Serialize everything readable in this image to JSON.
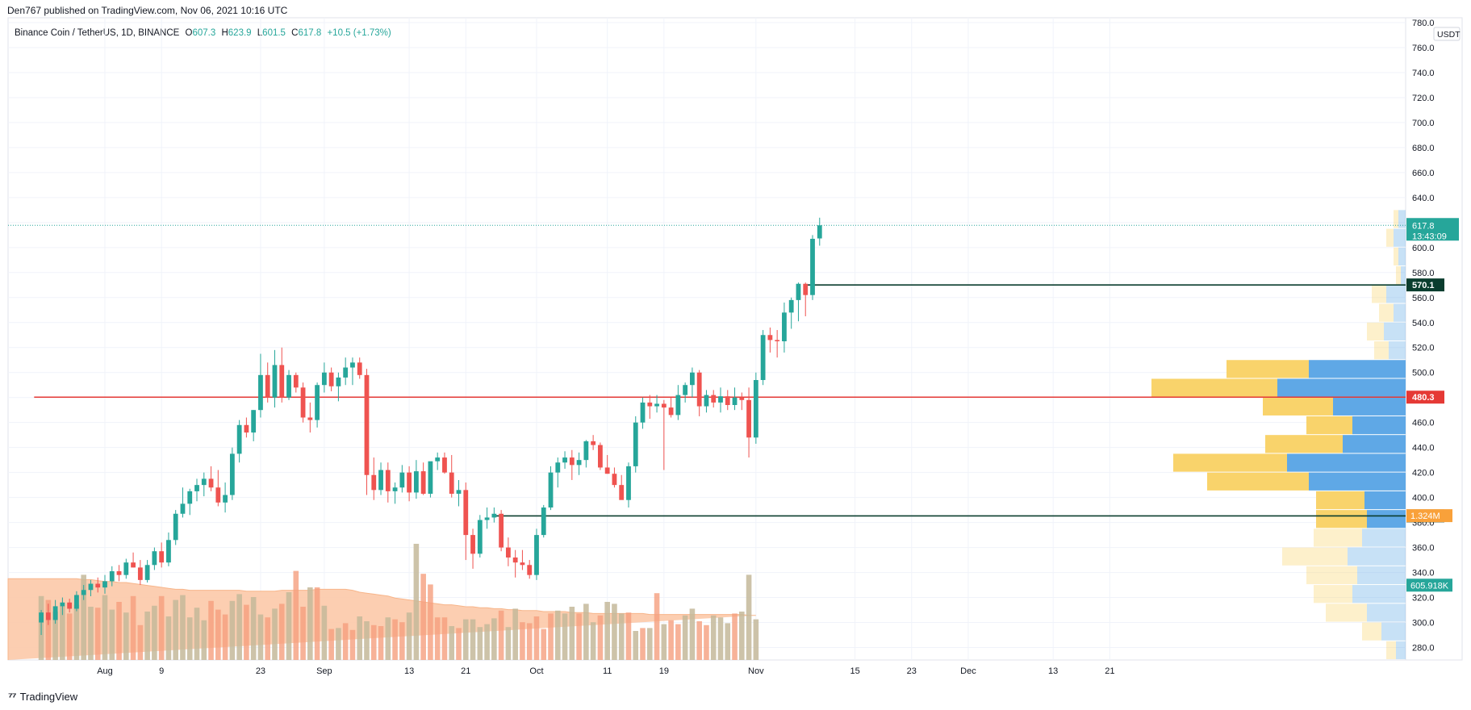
{
  "header": {
    "published": "Den767 published on TradingView.com, Nov 06, 2021 10:16 UTC"
  },
  "legend": {
    "symbol": "Binance Coin / TetherUS, 1D, BINANCE",
    "open_label": "O",
    "open": "607.3",
    "high_label": "H",
    "high": "623.9",
    "low_label": "L",
    "low": "601.5",
    "close_label": "C",
    "close": "617.8",
    "change": "+10.5 (+1.73%)"
  },
  "footer": {
    "logo": "TradingView"
  },
  "colors": {
    "up": "#26a69a",
    "down": "#ef5350",
    "vol_up": "#c4b99a",
    "vol_down": "#f59f7e",
    "ma_fill": "#fcc9a8",
    "support_line": "#0a3d2e",
    "resistance_line": "#e53935",
    "vp_yellow": "#f9d36b",
    "vp_blue": "#5fa8e6"
  },
  "chart_data": {
    "type": "candlestick",
    "ylim": [
      270,
      780
    ],
    "currency": "USDT",
    "y_ticks": [
      280,
      300,
      320,
      340,
      360,
      380,
      400,
      420,
      440,
      460,
      480,
      500,
      520,
      540,
      560,
      580,
      600,
      620,
      640,
      660,
      680,
      700,
      720,
      740,
      760,
      780
    ],
    "x_ticks": [
      {
        "label": "Aug",
        "day": 0
      },
      {
        "label": "9",
        "day": 8
      },
      {
        "label": "23",
        "day": 22
      },
      {
        "label": "Sep",
        "day": 31
      },
      {
        "label": "13",
        "day": 43
      },
      {
        "label": "21",
        "day": 51
      },
      {
        "label": "Oct",
        "day": 61
      },
      {
        "label": "11",
        "day": 71
      },
      {
        "label": "19",
        "day": 79
      },
      {
        "label": "Nov",
        "day": 92
      },
      {
        "label": "15",
        "day": 106
      },
      {
        "label": "23",
        "day": 114
      },
      {
        "label": "Dec",
        "day": 122
      },
      {
        "label": "13",
        "day": 134
      },
      {
        "label": "21",
        "day": 142
      }
    ],
    "candles": [
      [
        -9,
        300,
        310,
        290,
        308
      ],
      [
        -8,
        308,
        315,
        298,
        302
      ],
      [
        -7,
        302,
        318,
        299,
        313
      ],
      [
        -6,
        313,
        320,
        306,
        316
      ],
      [
        -5,
        316,
        319,
        308,
        311
      ],
      [
        -4,
        311,
        325,
        309,
        322
      ],
      [
        -3,
        322,
        330,
        318,
        326
      ],
      [
        -2,
        326,
        334,
        321,
        331
      ],
      [
        -1,
        331,
        336,
        324,
        328
      ],
      [
        0,
        328,
        338,
        323,
        333
      ],
      [
        1,
        333,
        345,
        329,
        341
      ],
      [
        2,
        341,
        346,
        333,
        338
      ],
      [
        3,
        338,
        351,
        335,
        348
      ],
      [
        4,
        348,
        356,
        344,
        344
      ],
      [
        5,
        344,
        350,
        330,
        334
      ],
      [
        6,
        334,
        350,
        332,
        346
      ],
      [
        7,
        346,
        360,
        342,
        357
      ],
      [
        8,
        357,
        364,
        344,
        348
      ],
      [
        9,
        348,
        372,
        345,
        366
      ],
      [
        10,
        366,
        390,
        362,
        387
      ],
      [
        11,
        387,
        408,
        384,
        395
      ],
      [
        12,
        395,
        407,
        386,
        405
      ],
      [
        13,
        405,
        415,
        397,
        410
      ],
      [
        14,
        410,
        420,
        401,
        415
      ],
      [
        15,
        415,
        425,
        405,
        408
      ],
      [
        16,
        408,
        422,
        393,
        396
      ],
      [
        17,
        396,
        412,
        388,
        402
      ],
      [
        18,
        402,
        440,
        398,
        435
      ],
      [
        19,
        435,
        462,
        428,
        458
      ],
      [
        20,
        458,
        464,
        448,
        452
      ],
      [
        21,
        452,
        470,
        445,
        470
      ],
      [
        22,
        470,
        515,
        464,
        498
      ],
      [
        23,
        498,
        508,
        476,
        480
      ],
      [
        24,
        480,
        518,
        472,
        506
      ],
      [
        25,
        506,
        520,
        476,
        480
      ],
      [
        26,
        480,
        502,
        478,
        498
      ],
      [
        27,
        498,
        500,
        484,
        488
      ],
      [
        28,
        488,
        492,
        460,
        464
      ],
      [
        29,
        464,
        476,
        452,
        462
      ],
      [
        30,
        462,
        492,
        456,
        490
      ],
      [
        31,
        490,
        508,
        484,
        500
      ],
      [
        32,
        500,
        504,
        485,
        489
      ],
      [
        33,
        489,
        500,
        477,
        496
      ],
      [
        34,
        496,
        512,
        490,
        504
      ],
      [
        35,
        504,
        512,
        490,
        508
      ],
      [
        36,
        508,
        512,
        495,
        498
      ],
      [
        37,
        498,
        503,
        402,
        418
      ],
      [
        38,
        418,
        432,
        398,
        406
      ],
      [
        39,
        406,
        428,
        402,
        422
      ],
      [
        40,
        422,
        428,
        396,
        405
      ],
      [
        41,
        405,
        412,
        395,
        408
      ],
      [
        42,
        408,
        426,
        404,
        420
      ],
      [
        43,
        420,
        425,
        397,
        404
      ],
      [
        44,
        404,
        430,
        399,
        421
      ],
      [
        45,
        421,
        428,
        402,
        403
      ],
      [
        46,
        403,
        428,
        400,
        429
      ],
      [
        47,
        429,
        436,
        422,
        432
      ],
      [
        48,
        432,
        436,
        419,
        420
      ],
      [
        49,
        420,
        434,
        400,
        403
      ],
      [
        50,
        403,
        414,
        393,
        406
      ],
      [
        51,
        406,
        412,
        350,
        370
      ],
      [
        52,
        370,
        375,
        343,
        355
      ],
      [
        53,
        355,
        386,
        352,
        382
      ],
      [
        54,
        382,
        392,
        375,
        384
      ],
      [
        55,
        384,
        392,
        380,
        387
      ],
      [
        56,
        387,
        390,
        357,
        360
      ],
      [
        57,
        360,
        368,
        345,
        352
      ],
      [
        58,
        352,
        358,
        336,
        348
      ],
      [
        59,
        348,
        358,
        342,
        346
      ],
      [
        60,
        346,
        350,
        335,
        338
      ],
      [
        61,
        338,
        375,
        334,
        370
      ],
      [
        62,
        370,
        394,
        368,
        392
      ],
      [
        63,
        392,
        425,
        390,
        420
      ],
      [
        64,
        420,
        432,
        408,
        428
      ],
      [
        65,
        428,
        437,
        423,
        432
      ],
      [
        66,
        432,
        438,
        414,
        426
      ],
      [
        67,
        426,
        436,
        418,
        430
      ],
      [
        68,
        430,
        446,
        424,
        445
      ],
      [
        69,
        445,
        450,
        438,
        442
      ],
      [
        70,
        442,
        444,
        422,
        424
      ],
      [
        71,
        424,
        434,
        419,
        419
      ],
      [
        72,
        419,
        424,
        408,
        410
      ],
      [
        73,
        410,
        418,
        400,
        398
      ],
      [
        74,
        398,
        428,
        392,
        425
      ],
      [
        75,
        425,
        465,
        420,
        460
      ],
      [
        76,
        460,
        480,
        455,
        476
      ],
      [
        77,
        476,
        482,
        463,
        473
      ],
      [
        78,
        473,
        482,
        468,
        475
      ],
      [
        79,
        475,
        478,
        422,
        472
      ],
      [
        80,
        472,
        480,
        464,
        466
      ],
      [
        81,
        466,
        490,
        462,
        482
      ],
      [
        82,
        482,
        492,
        476,
        490
      ],
      [
        83,
        490,
        504,
        480,
        500
      ],
      [
        84,
        500,
        502,
        465,
        473
      ],
      [
        85,
        473,
        486,
        468,
        482
      ],
      [
        86,
        482,
        486,
        472,
        476
      ],
      [
        87,
        476,
        488,
        468,
        481
      ],
      [
        88,
        481,
        486,
        470,
        474
      ],
      [
        89,
        474,
        488,
        470,
        480
      ],
      [
        90,
        480,
        484,
        470,
        478
      ],
      [
        91,
        478,
        488,
        432,
        448
      ],
      [
        92,
        448,
        500,
        443,
        494
      ],
      [
        93,
        494,
        534,
        490,
        530
      ],
      [
        94,
        530,
        536,
        516,
        526
      ],
      [
        95,
        526,
        534,
        512,
        525
      ],
      [
        96,
        525,
        556,
        516,
        548
      ],
      [
        97,
        548,
        560,
        535,
        558
      ],
      [
        98,
        558,
        572,
        541,
        571
      ],
      [
        99,
        571,
        572,
        545,
        562
      ],
      [
        100,
        562,
        610,
        558,
        607
      ],
      [
        101,
        607.3,
        623.9,
        601.5,
        617.8
      ]
    ],
    "volume_values": [
      0.66,
      0.62,
      0.5,
      0.56,
      0.48,
      0.57,
      0.88,
      0.55,
      0.54,
      0.67,
      0.52,
      0.6,
      0.49,
      0.66,
      0.36,
      0.5,
      0.56,
      0.66,
      0.45,
      0.62,
      0.67,
      0.44,
      0.54,
      0.41,
      0.61,
      0.52,
      0.47,
      0.61,
      0.68,
      0.57,
      0.65,
      0.47,
      0.44,
      0.53,
      0.58,
      0.7,
      0.92,
      0.55,
      0.75,
      0.75,
      0.56,
      0.32,
      0.33,
      0.38,
      0.31,
      0.45,
      0.4,
      0.36,
      0.35,
      0.44,
      0.42,
      0.39,
      0.49,
      1.2,
      0.89,
      0.78,
      0.44,
      0.44,
      0.35,
      0.33,
      0.42,
      0.42,
      0.34,
      0.37,
      0.43,
      0.51,
      0.34,
      0.53,
      0.39,
      0.38,
      0.45,
      0.32,
      0.48,
      0.51,
      0.48,
      0.55,
      0.48,
      0.58,
      0.39,
      0.46,
      0.6,
      0.58,
      0.48,
      0.49,
      0.3,
      0.33,
      0.33,
      0.69,
      0.37,
      0.41,
      0.37,
      0.46,
      0.53,
      0.4,
      0.36,
      0.46,
      0.44,
      0.38,
      0.48,
      0.5,
      0.88,
      0.42
    ],
    "volume_up_mask": [
      1,
      0,
      1,
      1,
      0,
      1,
      1,
      1,
      0,
      1,
      1,
      0,
      1,
      0,
      0,
      1,
      1,
      0,
      1,
      1,
      1,
      1,
      1,
      1,
      0,
      0,
      0,
      1,
      1,
      0,
      1,
      1,
      0,
      1,
      0,
      1,
      0,
      0,
      1,
      0,
      1,
      0,
      1,
      0,
      0,
      1,
      1,
      0,
      0,
      1,
      0,
      0,
      1,
      1,
      0,
      0,
      0,
      0,
      1,
      0,
      1,
      1,
      1,
      1,
      1,
      0,
      1,
      1,
      0,
      0,
      0,
      0,
      0,
      1,
      1,
      1,
      0,
      1,
      1,
      0,
      1,
      1,
      1,
      0,
      1,
      0,
      1,
      0,
      1,
      0,
      0,
      1,
      1,
      0,
      0,
      1,
      1,
      1,
      0,
      1,
      1,
      1
    ],
    "ma_values": [
      0.84,
      0.84,
      0.84,
      0.84,
      0.84,
      0.84,
      0.83,
      0.83,
      0.82,
      0.81,
      0.81,
      0.8,
      0.8,
      0.79,
      0.78,
      0.77,
      0.76,
      0.75,
      0.74,
      0.73,
      0.73,
      0.72,
      0.72,
      0.72,
      0.72,
      0.72,
      0.72,
      0.72,
      0.72,
      0.71,
      0.71,
      0.71,
      0.71,
      0.71,
      0.72,
      0.72,
      0.72,
      0.72,
      0.72,
      0.73,
      0.73,
      0.73,
      0.73,
      0.73,
      0.72,
      0.7,
      0.69,
      0.68,
      0.67,
      0.66,
      0.64,
      0.63,
      0.62,
      0.61,
      0.6,
      0.59,
      0.58,
      0.57,
      0.57,
      0.56,
      0.55,
      0.55,
      0.54,
      0.54,
      0.53,
      0.53,
      0.52,
      0.52,
      0.51,
      0.51,
      0.51,
      0.5,
      0.5,
      0.5,
      0.5,
      0.49,
      0.49,
      0.49,
      0.48,
      0.48,
      0.48,
      0.48,
      0.48,
      0.48,
      0.48,
      0.48,
      0.47,
      0.47,
      0.47,
      0.47,
      0.47,
      0.47,
      0.47,
      0.47,
      0.47,
      0.47,
      0.47,
      0.47,
      0.47,
      0.47,
      0.46,
      0.46
    ],
    "levels": [
      {
        "value": 570.1,
        "label": "570.1",
        "color": "#0a3d2e",
        "from_day": 99
      },
      {
        "value": 480.3,
        "label": "480.3",
        "color": "#e53935",
        "from_day": -10
      },
      {
        "value": 385.3,
        "label": "385.3",
        "color": "#0a3d2e",
        "from_day": 55
      }
    ],
    "price_badge": {
      "value": 617.8,
      "label": "617.8",
      "countdown": "13:43:09"
    },
    "volume_badges": [
      {
        "label": "1.324M",
        "color": "#f9a13a",
        "value": 1.324
      },
      {
        "label": "605.918K",
        "color": "#26a69a",
        "value": 0.606
      }
    ],
    "volume_profile": [
      {
        "low": 270,
        "high": 285,
        "up": 4,
        "down": 4,
        "faded": true
      },
      {
        "low": 285,
        "high": 300,
        "up": 8,
        "down": 10,
        "faded": true
      },
      {
        "low": 300,
        "high": 315,
        "up": 17,
        "down": 16,
        "faded": true
      },
      {
        "low": 315,
        "high": 330,
        "up": 16,
        "down": 22,
        "faded": true
      },
      {
        "low": 330,
        "high": 345,
        "up": 21,
        "down": 20,
        "faded": true
      },
      {
        "low": 345,
        "high": 360,
        "up": 27,
        "down": 24,
        "faded": true
      },
      {
        "low": 360,
        "high": 375,
        "up": 20,
        "down": 18,
        "faded": true
      },
      {
        "low": 375,
        "high": 390,
        "up": 21,
        "down": 16,
        "faded": false
      },
      {
        "low": 390,
        "high": 405,
        "up": 20,
        "down": 17,
        "faded": false
      },
      {
        "low": 405,
        "high": 420,
        "up": 42,
        "down": 40,
        "faded": false
      },
      {
        "low": 420,
        "high": 435,
        "up": 47,
        "down": 49,
        "faded": false
      },
      {
        "low": 435,
        "high": 450,
        "up": 32,
        "down": 26,
        "faded": false
      },
      {
        "low": 450,
        "high": 465,
        "up": 19,
        "down": 22,
        "faded": false
      },
      {
        "low": 465,
        "high": 480,
        "up": 29,
        "down": 30,
        "faded": false
      },
      {
        "low": 480,
        "high": 495,
        "up": 52,
        "down": 53,
        "faded": false
      },
      {
        "low": 495,
        "high": 510,
        "up": 34,
        "down": 40,
        "faded": false
      },
      {
        "low": 510,
        "high": 525,
        "up": 6,
        "down": 7,
        "faded": true
      },
      {
        "low": 525,
        "high": 540,
        "up": 7,
        "down": 9,
        "faded": true
      },
      {
        "low": 540,
        "high": 555,
        "up": 6,
        "down": 5,
        "faded": true
      },
      {
        "low": 555,
        "high": 570,
        "up": 6,
        "down": 8,
        "faded": true
      },
      {
        "low": 570,
        "high": 585,
        "up": 2,
        "down": 2,
        "faded": true
      },
      {
        "low": 585,
        "high": 600,
        "up": 2,
        "down": 3,
        "faded": true
      },
      {
        "low": 600,
        "high": 615,
        "up": 3,
        "down": 5,
        "faded": true
      },
      {
        "low": 615,
        "high": 630,
        "up": 2,
        "down": 3,
        "faded": true
      }
    ]
  }
}
